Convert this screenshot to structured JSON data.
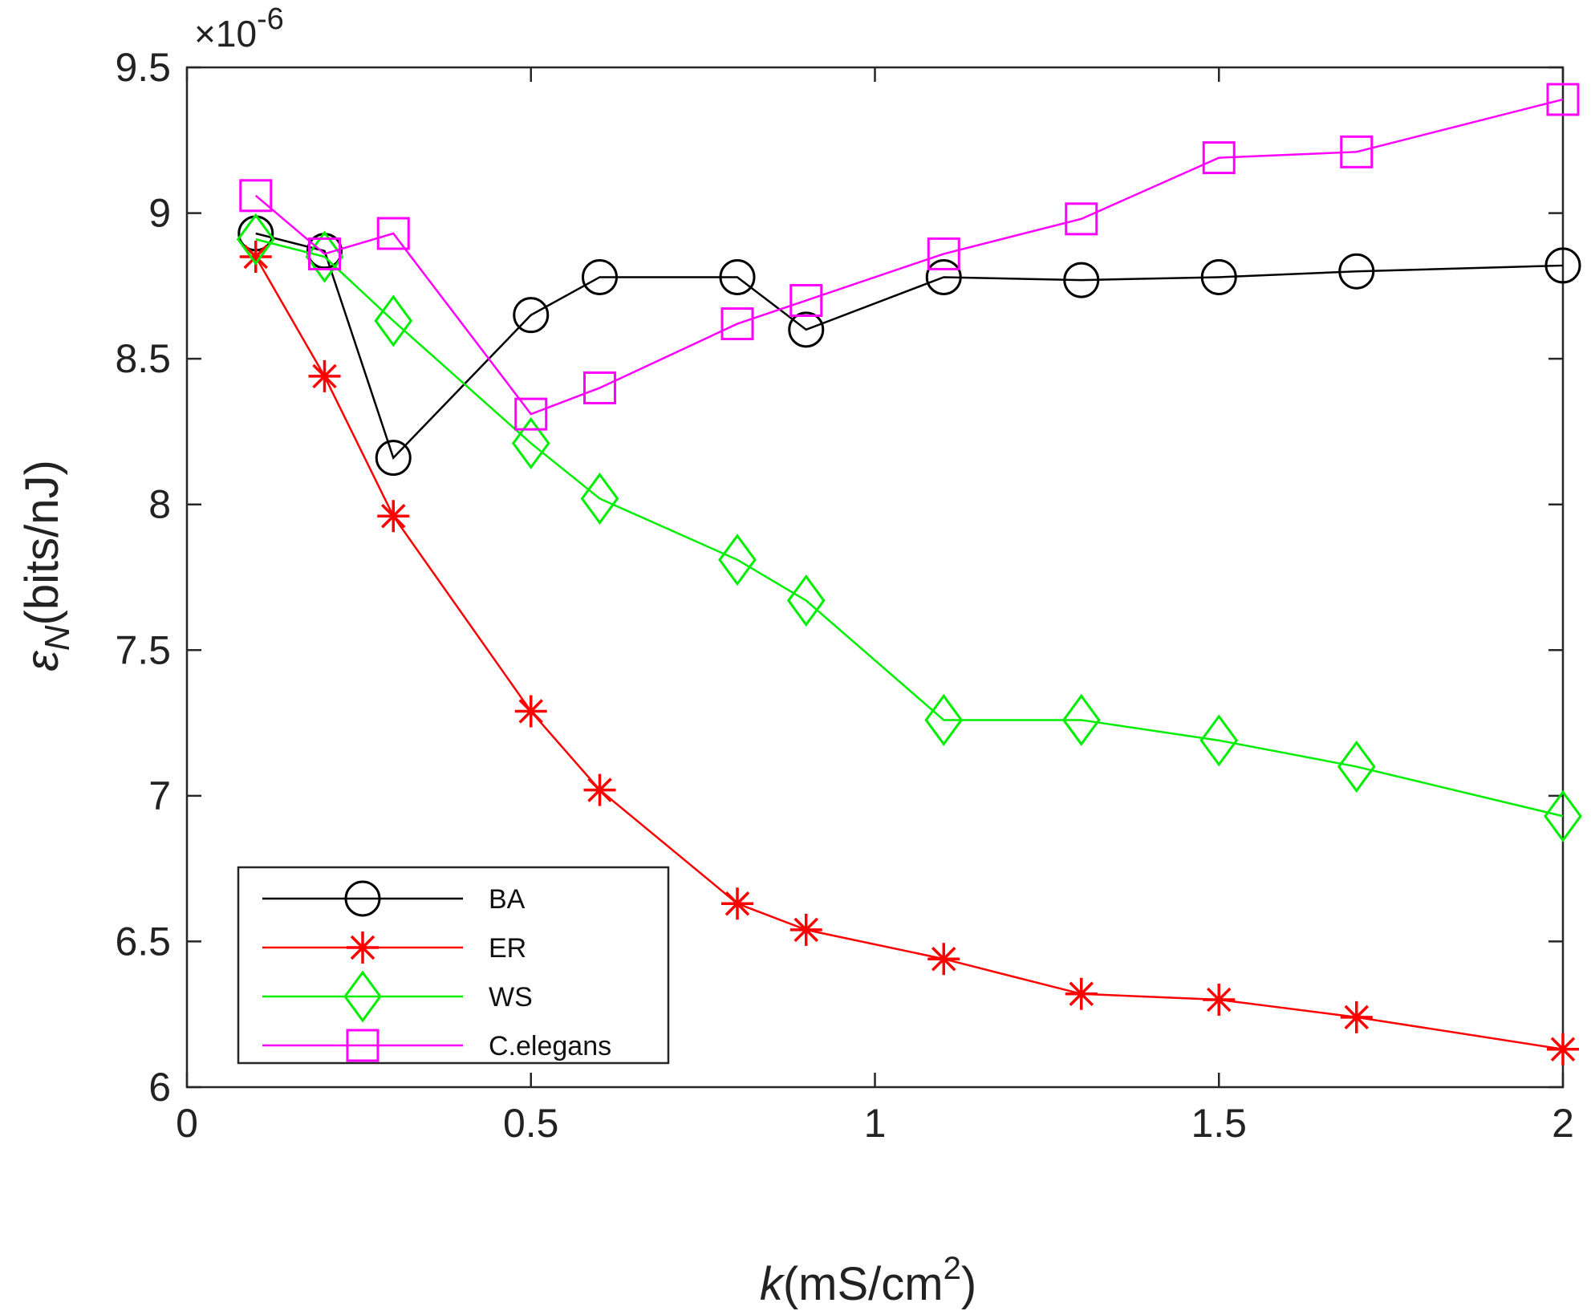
{
  "chart_data": {
    "type": "line",
    "title": "",
    "xlabel": {
      "italic": "k",
      "text": "(mS/cm",
      "sup": "2",
      "close": ")"
    },
    "ylabel": {
      "symbol": "ε",
      "sub": "N",
      "text": "(bits/nJ)"
    },
    "xlim": [
      0,
      2
    ],
    "ylim": [
      6,
      9.5
    ],
    "xticks": [
      0,
      0.5,
      1,
      1.5,
      2
    ],
    "xtick_labels": [
      "0",
      "0.5",
      "1",
      "1.5",
      "2"
    ],
    "yticks": [
      6,
      6.5,
      7,
      7.5,
      8,
      8.5,
      9,
      9.5
    ],
    "ytick_labels": [
      "6",
      "6.5",
      "7",
      "7.5",
      "8",
      "8.5",
      "9",
      "9.5"
    ],
    "y_multiplier": {
      "prefix": "×10",
      "exponent": "-6"
    },
    "grid": false,
    "legend_position": "bottom-left",
    "x": [
      0.1,
      0.2,
      0.3,
      0.5,
      0.6,
      0.8,
      0.9,
      1.1,
      1.3,
      1.5,
      1.7,
      2.0
    ],
    "series": [
      {
        "name": "BA",
        "color": "#000000",
        "marker": "circle",
        "values": [
          8.93,
          8.87,
          8.16,
          8.65,
          8.78,
          8.78,
          8.6,
          8.78,
          8.77,
          8.78,
          8.8,
          8.82
        ]
      },
      {
        "name": "ER",
        "color": "#ff0000",
        "marker": "asterisk",
        "values": [
          8.85,
          8.44,
          7.96,
          7.29,
          7.02,
          6.63,
          6.54,
          6.44,
          6.32,
          6.3,
          6.24,
          6.13
        ]
      },
      {
        "name": "WS",
        "color": "#00ee00",
        "marker": "diamond",
        "values": [
          8.91,
          8.85,
          8.63,
          8.21,
          8.02,
          7.81,
          7.67,
          7.26,
          7.26,
          7.19,
          7.1,
          6.93
        ]
      },
      {
        "name": "C.elegans",
        "color": "#ff00ff",
        "marker": "square",
        "values": [
          9.06,
          8.86,
          8.93,
          8.31,
          8.4,
          8.62,
          8.7,
          8.86,
          8.98,
          9.19,
          9.21,
          9.39
        ]
      }
    ]
  }
}
